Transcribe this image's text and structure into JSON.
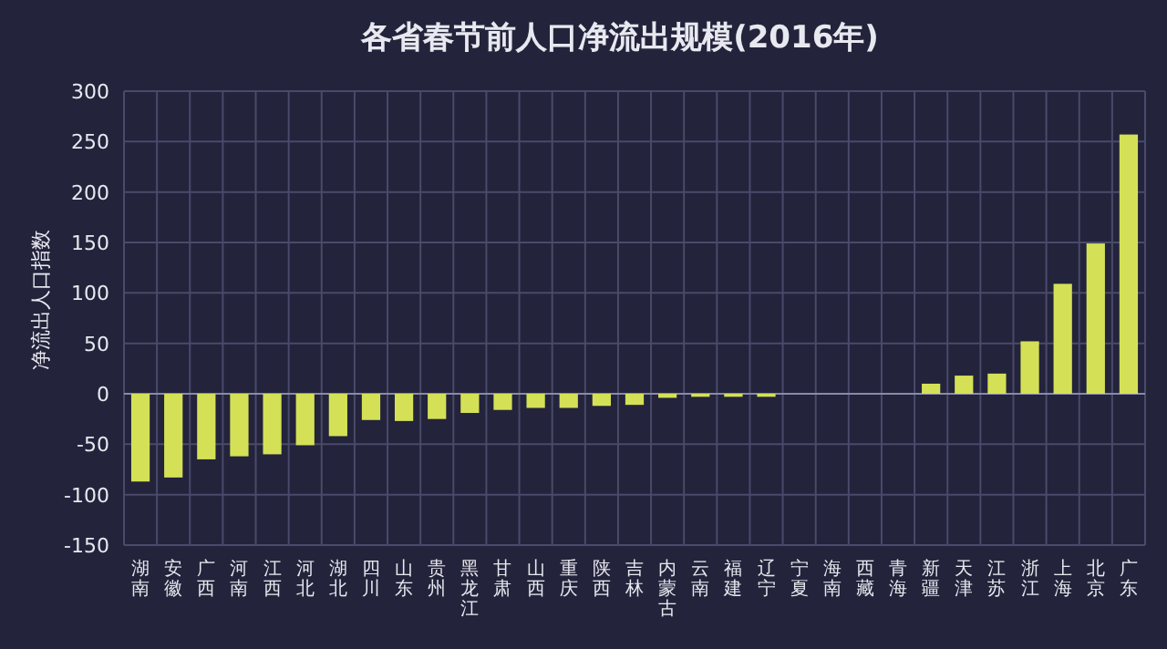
{
  "chart_data": {
    "type": "bar",
    "title": "各省春节前人口净流出规模(2016年)",
    "ylabel": "净流出人口指数",
    "categories": [
      "湖南",
      "安徽",
      "广西",
      "河南",
      "江西",
      "河北",
      "湖北",
      "四川",
      "山东",
      "贵州",
      "黑龙江",
      "甘肃",
      "山西",
      "重庆",
      "陕西",
      "吉林",
      "内蒙古",
      "云南",
      "福建",
      "辽宁",
      "宁夏",
      "海南",
      "西藏",
      "青海",
      "新疆",
      "天津",
      "江苏",
      "浙江",
      "上海",
      "北京",
      "广东"
    ],
    "values": [
      -87,
      -83,
      -65,
      -62,
      -60,
      -51,
      -42,
      -26,
      -27,
      -25,
      -19,
      -16,
      -14,
      -14,
      -12,
      -11,
      -4,
      -3,
      -3,
      -3,
      0,
      0,
      0,
      0,
      10,
      18,
      20,
      52,
      109,
      149,
      257
    ],
    "color": "#d4e157",
    "ylim": [
      -150,
      300
    ],
    "yticks": [
      -150,
      -100,
      -50,
      0,
      50,
      100,
      150,
      200,
      250,
      300
    ],
    "grid": true
  }
}
